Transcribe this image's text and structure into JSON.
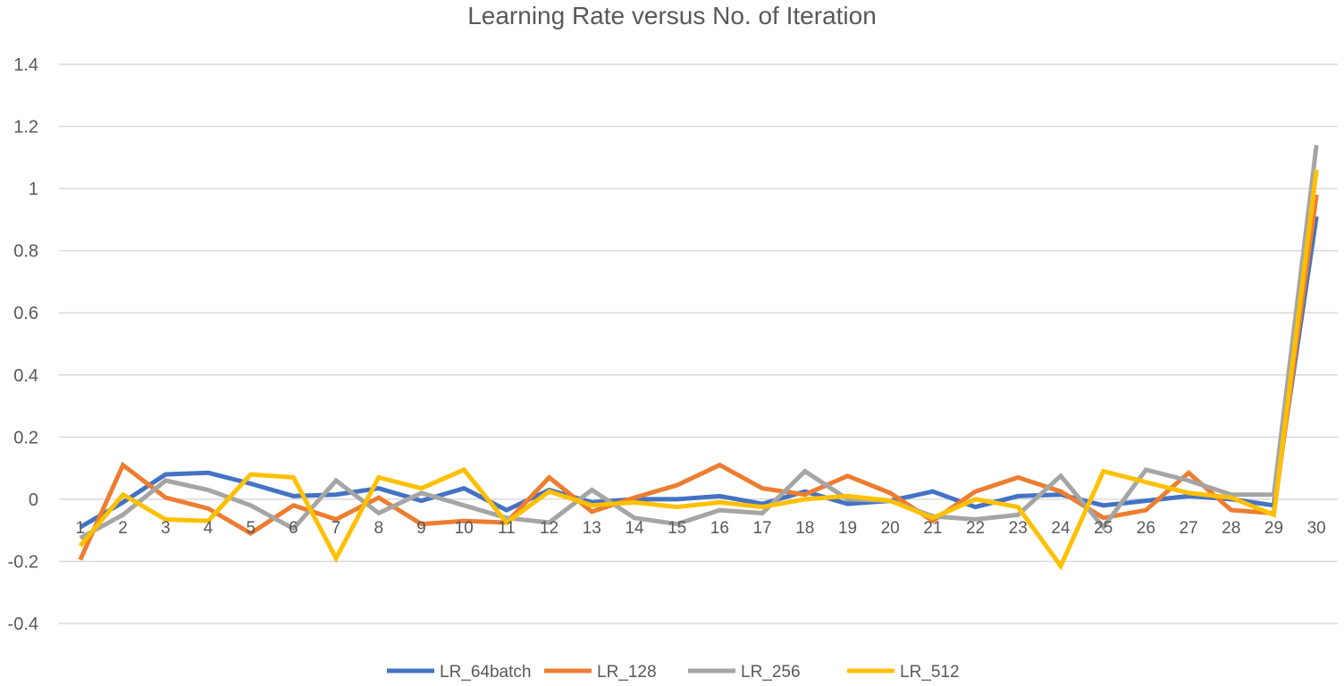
{
  "chart_data": {
    "type": "line",
    "title": "Learning Rate versus No. of Iteration",
    "xlabel": "",
    "ylabel": "",
    "categories": [
      "1",
      "2",
      "3",
      "4",
      "5",
      "6",
      "7",
      "8",
      "9",
      "10",
      "11",
      "12",
      "13",
      "14",
      "15",
      "16",
      "17",
      "18",
      "19",
      "20",
      "21",
      "22",
      "23",
      "24",
      "25",
      "26",
      "27",
      "28",
      "29",
      "30"
    ],
    "ylim": [
      -0.4,
      1.4
    ],
    "yticks": [
      "-0.4",
      "-0.2",
      "0",
      "0.2",
      "0.4",
      "0.6",
      "0.8",
      "1",
      "1.2",
      "1.4"
    ],
    "ytick_values": [
      -0.4,
      -0.2,
      0,
      0.2,
      0.4,
      0.6,
      0.8,
      1,
      1.2,
      1.4
    ],
    "grid": true,
    "legend_position": "bottom",
    "series": [
      {
        "name": "LR_64batch",
        "color": "#4472C4",
        "values": [
          -0.09,
          -0.01,
          0.08,
          0.085,
          0.05,
          0.01,
          0.015,
          0.035,
          -0.005,
          0.035,
          -0.035,
          0.03,
          -0.01,
          0.0,
          0.0,
          0.01,
          -0.015,
          0.025,
          -0.015,
          -0.005,
          0.025,
          -0.025,
          0.01,
          0.015,
          -0.02,
          -0.005,
          0.01,
          0.0,
          -0.02,
          0.91
        ]
      },
      {
        "name": "LR_128",
        "color": "#ED7D31",
        "values": [
          -0.195,
          0.11,
          0.005,
          -0.03,
          -0.11,
          -0.02,
          -0.065,
          0.005,
          -0.08,
          -0.07,
          -0.075,
          0.07,
          -0.04,
          0.005,
          0.045,
          0.11,
          0.035,
          0.015,
          0.075,
          0.02,
          -0.07,
          0.025,
          0.07,
          0.025,
          -0.06,
          -0.035,
          0.085,
          -0.035,
          -0.045,
          0.98
        ]
      },
      {
        "name": "LR_256",
        "color": "#A5A5A5",
        "values": [
          -0.125,
          -0.05,
          0.06,
          0.03,
          -0.02,
          -0.095,
          0.06,
          -0.045,
          0.02,
          -0.02,
          -0.06,
          -0.075,
          0.03,
          -0.06,
          -0.08,
          -0.035,
          -0.045,
          0.09,
          0.0,
          -0.005,
          -0.055,
          -0.065,
          -0.05,
          0.075,
          -0.09,
          0.095,
          0.06,
          0.015,
          0.015,
          1.14
        ]
      },
      {
        "name": "LR_512",
        "color": "#FFC000",
        "values": [
          -0.15,
          0.015,
          -0.065,
          -0.07,
          0.08,
          0.07,
          -0.19,
          0.07,
          0.035,
          0.095,
          -0.075,
          0.025,
          -0.02,
          -0.01,
          -0.025,
          -0.01,
          -0.025,
          0.0,
          0.01,
          -0.005,
          -0.06,
          0.0,
          -0.025,
          -0.215,
          0.09,
          0.055,
          0.02,
          0.005,
          -0.05,
          1.06
        ]
      }
    ]
  }
}
